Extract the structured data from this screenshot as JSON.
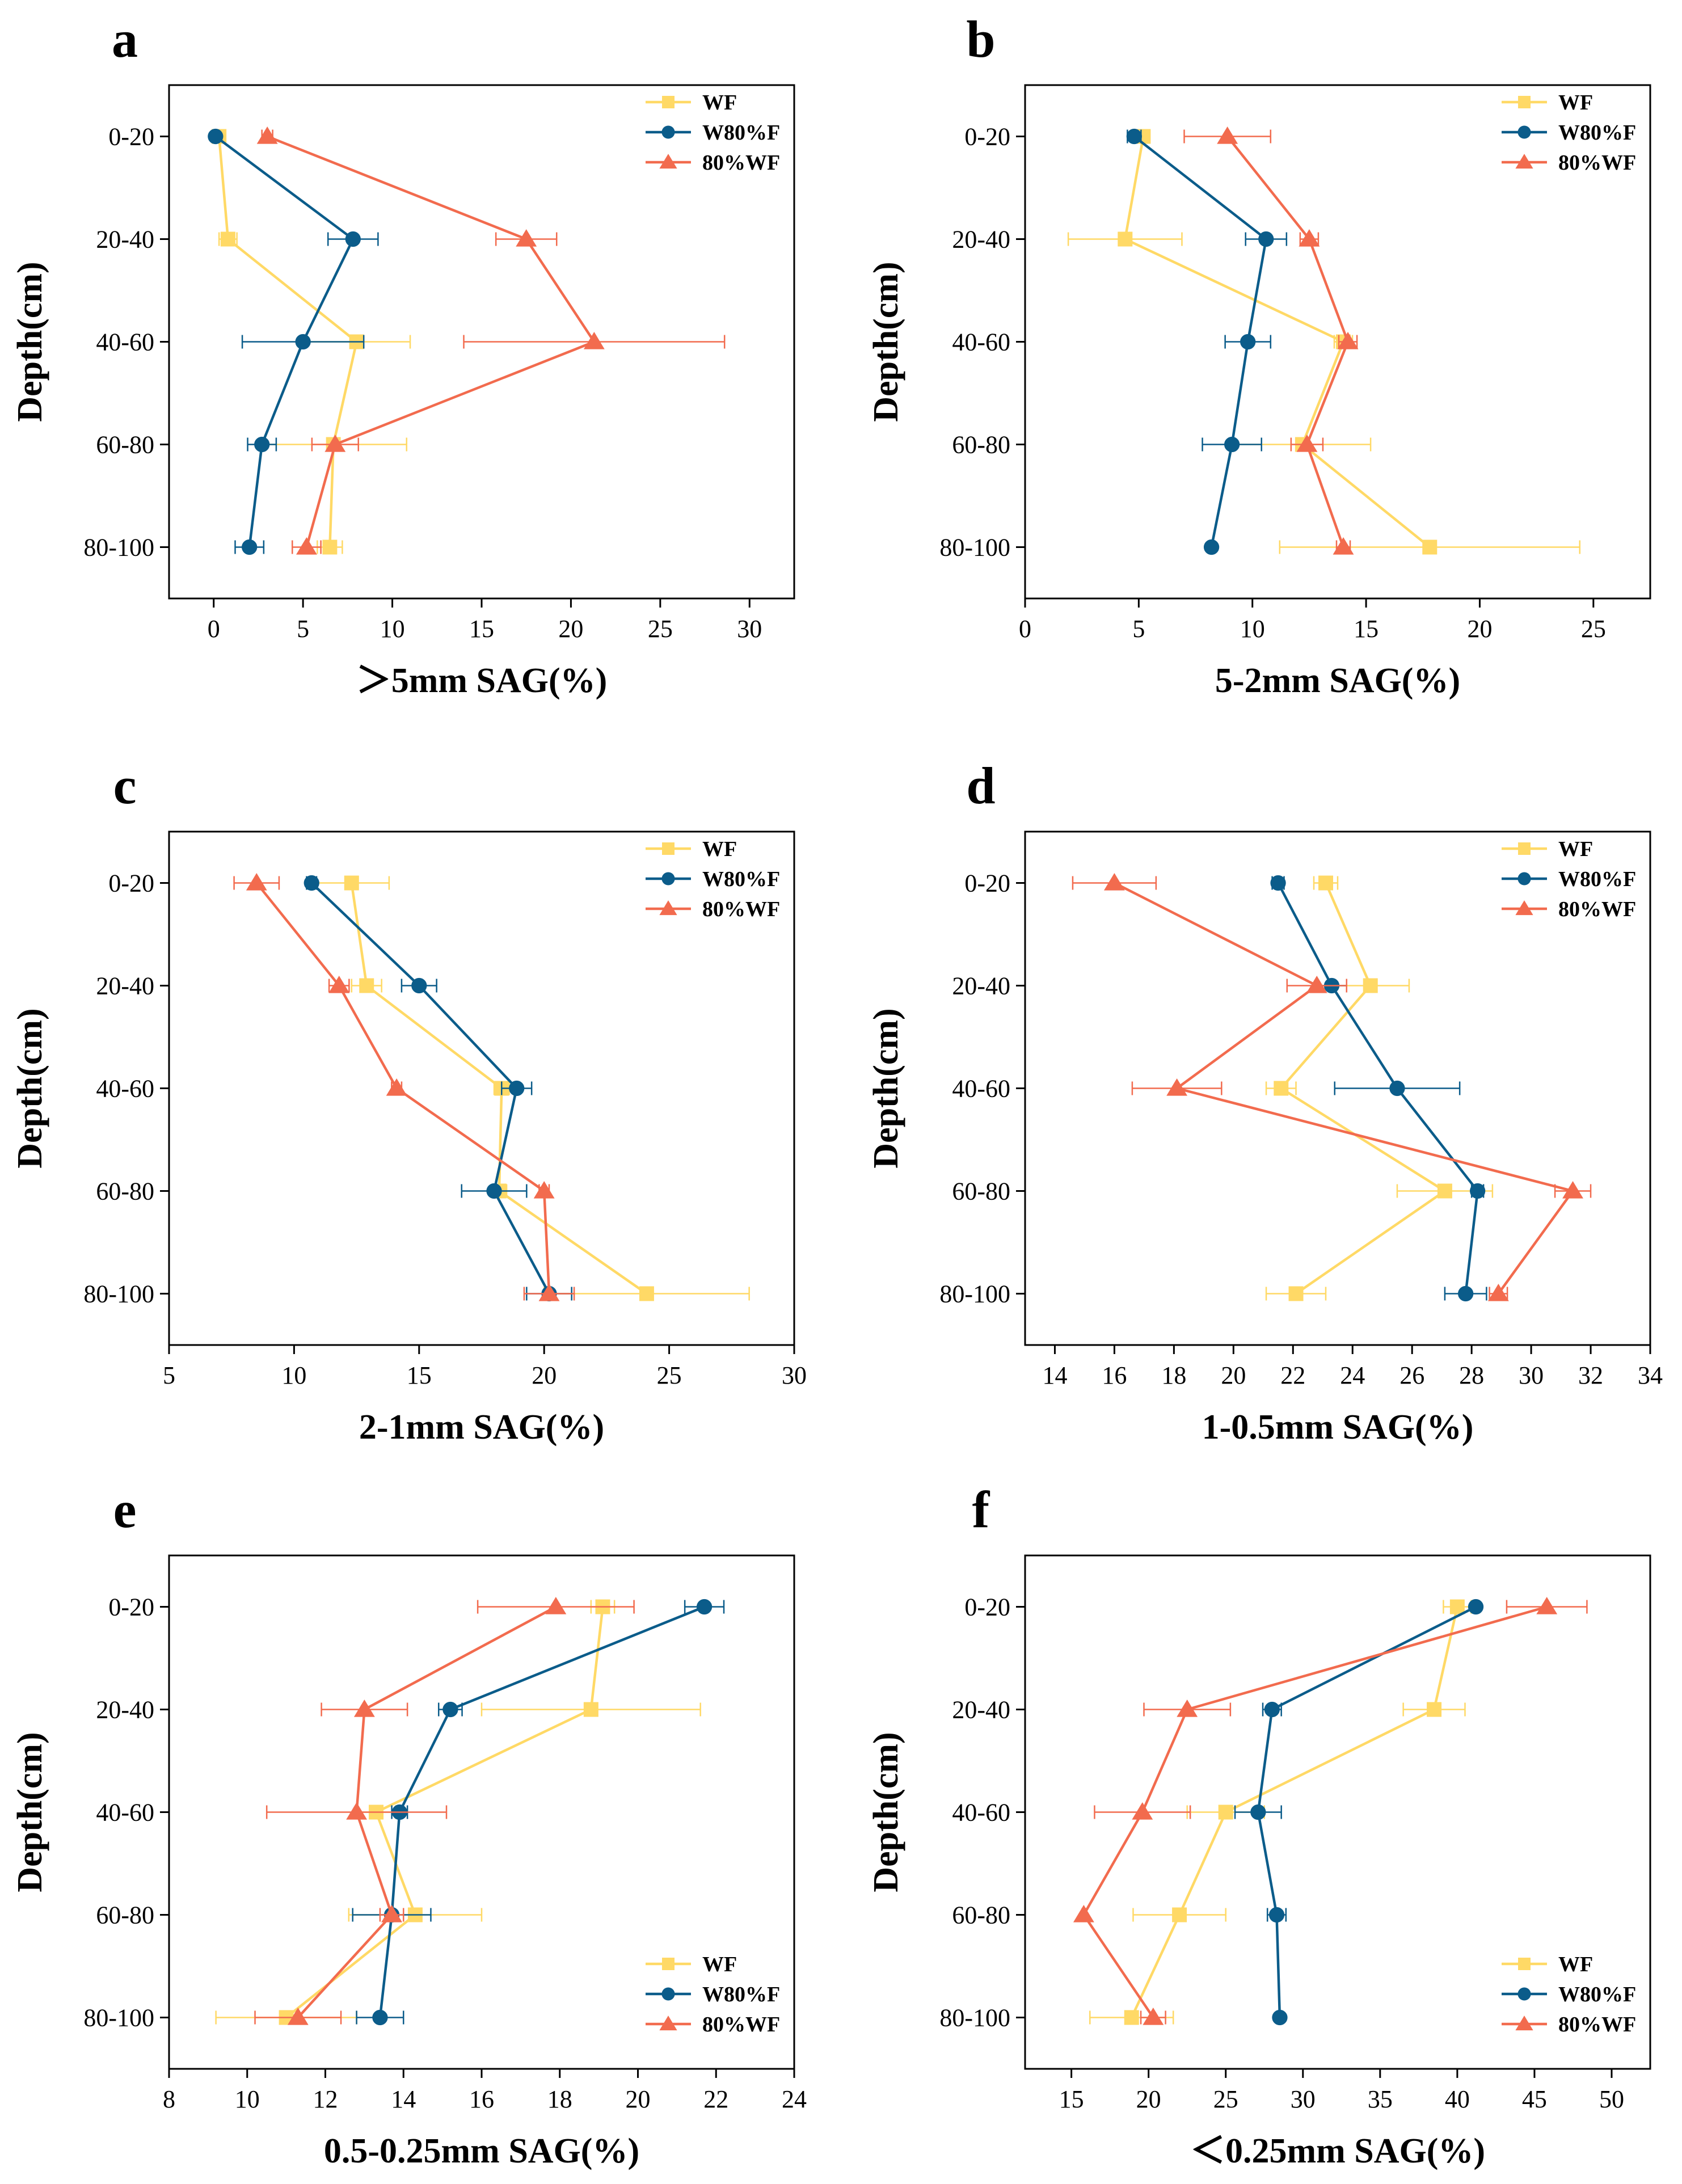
{
  "figure": {
    "depth_categories": [
      "0-20",
      "20-40",
      "40-60",
      "60-80",
      "80-100"
    ],
    "ylabel": "Depth(cm)",
    "colors": {
      "WF": "#FFD966",
      "W80%F": "#0B5C8A",
      "80%WF": "#F26B4E"
    },
    "markers": {
      "WF": "square",
      "W80%F": "circle",
      "80%WF": "triangle"
    }
  },
  "chart_data": [
    {
      "type": "line",
      "panel": "a",
      "xlabel": "＞5mm SAG(%)",
      "ylabel": "Depth(cm)",
      "categories": [
        "0-20",
        "20-40",
        "40-60",
        "60-80",
        "80-100"
      ],
      "xlim": [
        -2.5,
        32.5
      ],
      "xticks": [
        0,
        5,
        10,
        15,
        20,
        25,
        30
      ],
      "legend": "top-right",
      "series": [
        {
          "name": "WF",
          "values": [
            0.3,
            0.8,
            8.0,
            6.7,
            6.5
          ],
          "errors": [
            0.3,
            0.5,
            3.0,
            4.1,
            0.7
          ]
        },
        {
          "name": "W80%F",
          "values": [
            0.1,
            7.8,
            5.0,
            2.7,
            2.0
          ],
          "errors": [
            0.1,
            1.4,
            3.4,
            0.8,
            0.8
          ]
        },
        {
          "name": "80%WF",
          "values": [
            3.0,
            17.5,
            21.3,
            6.8,
            5.2
          ],
          "errors": [
            0.3,
            1.7,
            7.3,
            1.3,
            0.8
          ]
        }
      ]
    },
    {
      "type": "line",
      "panel": "b",
      "xlabel": "5-2mm SAG(%)",
      "ylabel": "Depth(cm)",
      "categories": [
        "0-20",
        "20-40",
        "40-60",
        "60-80",
        "80-100"
      ],
      "xlim": [
        0,
        27.5
      ],
      "xticks": [
        0,
        5,
        10,
        15,
        20,
        25
      ],
      "legend": "top-right",
      "series": [
        {
          "name": "WF",
          "values": [
            5.2,
            4.4,
            14.0,
            12.2,
            17.8
          ],
          "errors": [
            0.2,
            2.5,
            0.4,
            3.0,
            6.6
          ]
        },
        {
          "name": "W80%F",
          "values": [
            4.8,
            10.6,
            9.8,
            9.1,
            8.2
          ],
          "errors": [
            0.3,
            0.9,
            1.0,
            1.3,
            0.1
          ]
        },
        {
          "name": "80%WF",
          "values": [
            8.9,
            12.5,
            14.2,
            12.4,
            14.0
          ],
          "errors": [
            1.9,
            0.4,
            0.4,
            0.7,
            0.3
          ]
        }
      ]
    },
    {
      "type": "line",
      "panel": "c",
      "xlabel": "2-1mm SAG(%)",
      "ylabel": "Depth(cm)",
      "categories": [
        "0-20",
        "20-40",
        "40-60",
        "60-80",
        "80-100"
      ],
      "xlim": [
        5,
        30
      ],
      "xticks": [
        5,
        10,
        15,
        20,
        25,
        30
      ],
      "legend": "top-right",
      "series": [
        {
          "name": "WF",
          "values": [
            12.3,
            12.9,
            18.3,
            18.2,
            24.1
          ],
          "errors": [
            1.5,
            0.6,
            0.3,
            0.3,
            4.1
          ]
        },
        {
          "name": "W80%F",
          "values": [
            10.7,
            15.0,
            18.9,
            18.0,
            20.2
          ],
          "errors": [
            0.2,
            0.7,
            0.6,
            1.3,
            0.9
          ]
        },
        {
          "name": "80%WF",
          "values": [
            8.5,
            11.8,
            14.1,
            20.0,
            20.2
          ],
          "errors": [
            0.9,
            0.4,
            0.2,
            0.2,
            1.0
          ]
        }
      ]
    },
    {
      "type": "line",
      "panel": "d",
      "xlabel": "1-0.5mm SAG(%)",
      "ylabel": "Depth(cm)",
      "categories": [
        "0-20",
        "20-40",
        "40-60",
        "60-80",
        "80-100"
      ],
      "xlim": [
        13,
        34
      ],
      "xticks": [
        14,
        16,
        18,
        20,
        22,
        24,
        26,
        28,
        30,
        32,
        34
      ],
      "legend": "top-right",
      "series": [
        {
          "name": "WF",
          "values": [
            23.1,
            24.6,
            21.6,
            27.1,
            22.1
          ],
          "errors": [
            0.4,
            1.3,
            0.5,
            1.6,
            1.0
          ]
        },
        {
          "name": "W80%F",
          "values": [
            21.5,
            23.3,
            25.5,
            28.2,
            27.8
          ],
          "errors": [
            0.2,
            0.5,
            2.1,
            0.2,
            0.7
          ]
        },
        {
          "name": "80%WF",
          "values": [
            16.0,
            22.8,
            18.1,
            31.4,
            28.9
          ],
          "errors": [
            1.4,
            1.0,
            1.5,
            0.6,
            0.3
          ]
        }
      ]
    },
    {
      "type": "line",
      "panel": "e",
      "xlabel": "0.5-0.25mm SAG(%)",
      "ylabel": "Depth(cm)",
      "categories": [
        "0-20",
        "20-40",
        "40-60",
        "60-80",
        "80-100"
      ],
      "xlim": [
        8,
        24
      ],
      "xticks": [
        8,
        10,
        12,
        14,
        16,
        18,
        20,
        22,
        24
      ],
      "legend": "bottom-right",
      "series": [
        {
          "name": "WF",
          "values": [
            19.1,
            18.8,
            13.3,
            14.3,
            11.0
          ],
          "errors": [
            0.3,
            2.8,
            0.5,
            1.7,
            1.8
          ]
        },
        {
          "name": "W80%F",
          "values": [
            21.7,
            15.2,
            13.9,
            13.7,
            13.4
          ],
          "errors": [
            0.5,
            0.3,
            0.2,
            1.0,
            0.6
          ]
        },
        {
          "name": "80%WF",
          "values": [
            17.9,
            13.0,
            12.8,
            13.7,
            11.3
          ],
          "errors": [
            2.0,
            1.1,
            2.3,
            0.3,
            1.1
          ]
        }
      ]
    },
    {
      "type": "line",
      "panel": "f",
      "xlabel": "＜0.25mm SAG(%)",
      "ylabel": "Depth(cm)",
      "categories": [
        "0-20",
        "20-40",
        "40-60",
        "60-80",
        "80-100"
      ],
      "xlim": [
        12,
        52.5
      ],
      "xticks": [
        15,
        20,
        25,
        30,
        35,
        40,
        45,
        50
      ],
      "legend": "bottom-right",
      "series": [
        {
          "name": "WF",
          "values": [
            40.0,
            38.5,
            25.0,
            22.0,
            18.9
          ],
          "errors": [
            0.9,
            2.0,
            2.5,
            3.0,
            2.7
          ]
        },
        {
          "name": "W80%F",
          "values": [
            41.2,
            28.0,
            27.1,
            28.3,
            28.5
          ],
          "errors": [
            0.2,
            0.6,
            1.5,
            0.6,
            0.1
          ]
        },
        {
          "name": "80%WF",
          "values": [
            45.8,
            22.5,
            19.6,
            15.8,
            20.3
          ],
          "errors": [
            2.6,
            2.8,
            3.1,
            0.1,
            0.8
          ]
        }
      ]
    }
  ]
}
